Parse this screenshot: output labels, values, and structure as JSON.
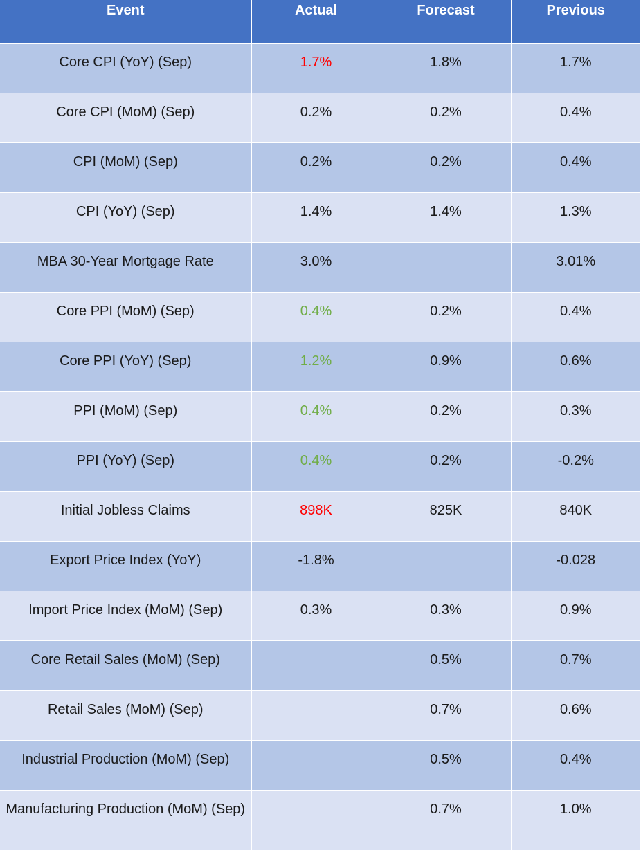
{
  "header": {
    "event": "Event",
    "actual": "Actual",
    "forecast": "Forecast",
    "previous": "Previous"
  },
  "colors": {
    "header_bg": "#4472c4",
    "row_dark": "#b4c6e7",
    "row_light": "#dae1f3",
    "below_forecast": "#ff0000",
    "above_forecast": "#70ad47"
  },
  "rows": [
    {
      "event": "Core CPI (YoY) (Sep)",
      "actual": "1.7%",
      "forecast": "1.8%",
      "previous": "1.7%",
      "actual_status": "neg"
    },
    {
      "event": "Core CPI (MoM) (Sep)",
      "actual": "0.2%",
      "forecast": "0.2%",
      "previous": "0.4%",
      "actual_status": "neutral"
    },
    {
      "event": "CPI (MoM) (Sep)",
      "actual": "0.2%",
      "forecast": "0.2%",
      "previous": "0.4%",
      "actual_status": "neutral"
    },
    {
      "event": "CPI (YoY) (Sep)",
      "actual": "1.4%",
      "forecast": "1.4%",
      "previous": "1.3%",
      "actual_status": "neutral"
    },
    {
      "event": "MBA 30-Year Mortgage Rate",
      "actual": "3.0%",
      "forecast": "",
      "previous": "3.01%",
      "actual_status": "neutral"
    },
    {
      "event": "Core PPI (MoM) (Sep)",
      "actual": "0.4%",
      "forecast": "0.2%",
      "previous": "0.4%",
      "actual_status": "pos"
    },
    {
      "event": "Core PPI (YoY) (Sep)",
      "actual": "1.2%",
      "forecast": "0.9%",
      "previous": "0.6%",
      "actual_status": "pos"
    },
    {
      "event": "PPI (MoM) (Sep)",
      "actual": "0.4%",
      "forecast": "0.2%",
      "previous": "0.3%",
      "actual_status": "pos"
    },
    {
      "event": "PPI (YoY) (Sep)",
      "actual": "0.4%",
      "forecast": "0.2%",
      "previous": "-0.2%",
      "actual_status": "pos"
    },
    {
      "event": "Initial Jobless Claims",
      "actual": "898K",
      "forecast": "825K",
      "previous": "840K",
      "actual_status": "neg"
    },
    {
      "event": "Export Price Index (YoY)",
      "actual": "-1.8%",
      "forecast": "",
      "previous": "-0.028",
      "actual_status": "neutral"
    },
    {
      "event": "Import Price Index (MoM) (Sep)",
      "actual": "0.3%",
      "forecast": "0.3%",
      "previous": "0.9%",
      "actual_status": "neutral"
    },
    {
      "event": "Core Retail Sales (MoM) (Sep)",
      "actual": "",
      "forecast": "0.5%",
      "previous": "0.7%",
      "actual_status": "neutral"
    },
    {
      "event": "Retail Sales (MoM) (Sep)",
      "actual": "",
      "forecast": "0.7%",
      "previous": "0.6%",
      "actual_status": "neutral"
    },
    {
      "event": "Industrial Production (MoM) (Sep)",
      "actual": "",
      "forecast": "0.5%",
      "previous": "0.4%",
      "actual_status": "neutral"
    },
    {
      "event": "Manufacturing Production (MoM) (Sep)",
      "actual": "",
      "forecast": "0.7%",
      "previous": "1.0%",
      "actual_status": "neutral"
    }
  ]
}
